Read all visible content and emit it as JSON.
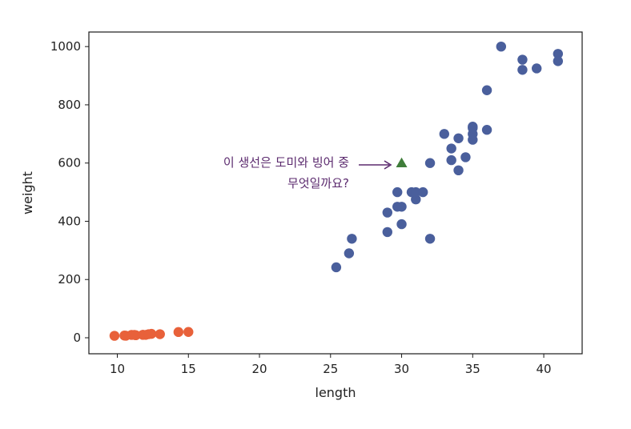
{
  "chart_data": {
    "type": "scatter",
    "title": "",
    "xlabel": "length",
    "ylabel": "weight",
    "xlim": [
      8,
      42.7
    ],
    "ylim": [
      -55,
      1050
    ],
    "xticks": [
      10,
      15,
      20,
      25,
      30,
      35,
      40
    ],
    "yticks": [
      0,
      200,
      400,
      600,
      800,
      1000
    ],
    "grid": false,
    "series": [
      {
        "color": "#4a5f9c",
        "marker": "circle",
        "x": [
          25.4,
          26.3,
          26.5,
          29.0,
          29.0,
          29.7,
          29.7,
          30.0,
          30.0,
          30.7,
          31.0,
          31.0,
          31.5,
          32.0,
          32.0,
          33.0,
          33.5,
          33.5,
          34.0,
          34.0,
          34.5,
          35.0,
          35.0,
          35.0,
          35.0,
          36.0,
          36.0,
          37.0,
          38.5,
          38.5,
          39.5,
          41.0,
          41.0
        ],
        "y": [
          242,
          290,
          340,
          363,
          430,
          450,
          500,
          390,
          450,
          500,
          475,
          500,
          500,
          340,
          600,
          700,
          610,
          650,
          575,
          685,
          620,
          680,
          700,
          725,
          720,
          714,
          850,
          1000,
          920,
          955,
          925,
          975,
          950
        ]
      },
      {
        "color": "#e8613a",
        "marker": "circle",
        "x": [
          9.8,
          10.5,
          10.6,
          11.0,
          11.2,
          11.3,
          11.8,
          11.8,
          12.0,
          12.2,
          12.4,
          13.0,
          14.3,
          15.0
        ],
        "y": [
          6.7,
          7.5,
          7.0,
          9.7,
          9.8,
          8.7,
          10.0,
          9.9,
          9.8,
          12.2,
          13.4,
          12.2,
          19.7,
          19.9
        ]
      },
      {
        "color": "#3f7d3a",
        "marker": "triangle",
        "x": [
          30
        ],
        "y": [
          600
        ]
      }
    ],
    "annotations": [
      {
        "lines": [
          "이 생선은 도미와 빙어 중",
          "무엇일까요?"
        ],
        "target": [
          30,
          600
        ],
        "color": "#5b2a6e"
      }
    ]
  }
}
